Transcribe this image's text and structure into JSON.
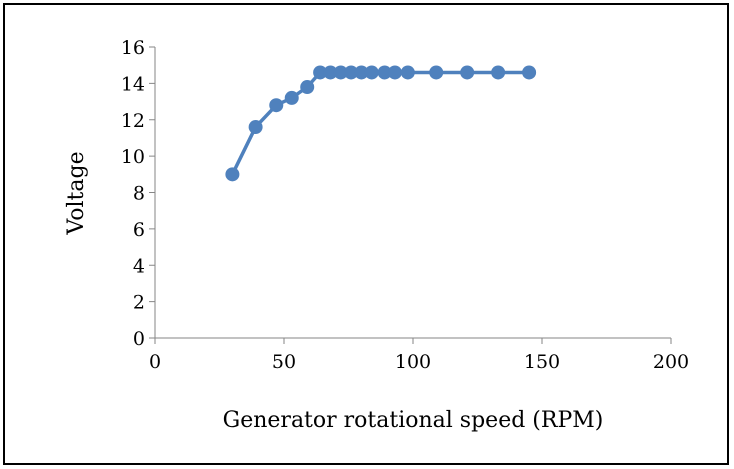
{
  "chart_data": {
    "type": "line",
    "title": "",
    "xlabel": "Generator rotational speed (RPM)",
    "ylabel": "Voltage",
    "xlim": [
      0,
      200
    ],
    "ylim": [
      0,
      16
    ],
    "xticks": [
      "0",
      "50",
      "100",
      "150",
      "200"
    ],
    "yticks": [
      "0",
      "2",
      "4",
      "6",
      "8",
      "10",
      "12",
      "14",
      "16"
    ],
    "grid": false,
    "legend": "none",
    "series": [
      {
        "color": "#4f81bd",
        "markers": true,
        "points": [
          [
            30,
            9.0
          ],
          [
            39,
            11.6
          ],
          [
            47,
            12.8
          ],
          [
            53,
            13.2
          ],
          [
            59,
            13.8
          ],
          [
            64,
            14.6
          ],
          [
            68,
            14.6
          ],
          [
            72,
            14.6
          ],
          [
            76,
            14.6
          ],
          [
            80,
            14.6
          ],
          [
            84,
            14.6
          ],
          [
            89,
            14.6
          ],
          [
            93,
            14.6
          ],
          [
            98,
            14.6
          ],
          [
            109,
            14.6
          ],
          [
            121,
            14.6
          ],
          [
            133,
            14.6
          ],
          [
            145,
            14.6
          ]
        ]
      }
    ]
  }
}
